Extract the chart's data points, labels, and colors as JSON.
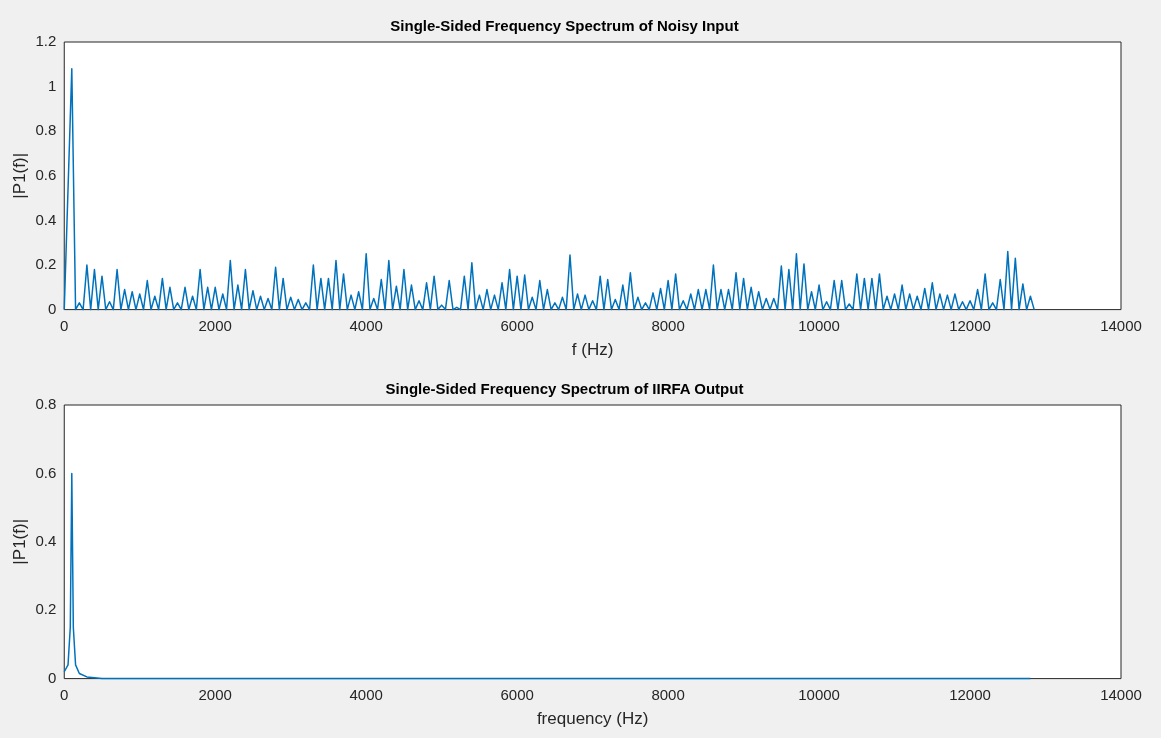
{
  "chart_data": [
    {
      "type": "line",
      "title": "Single-Sided Frequency Spectrum of Noisy Input",
      "xlabel": "f (Hz)",
      "ylabel": "|P1(f)|",
      "marker": "none",
      "x": [
        0,
        100,
        150,
        200,
        250,
        300,
        350,
        400,
        450,
        500,
        550,
        600,
        650,
        700,
        750,
        800,
        850,
        900,
        950,
        1000,
        1050,
        1100,
        1150,
        1200,
        1250,
        1300,
        1350,
        1400,
        1450,
        1500,
        1550,
        1600,
        1650,
        1700,
        1750,
        1800,
        1850,
        1900,
        1950,
        2000,
        2050,
        2100,
        2150,
        2200,
        2250,
        2300,
        2350,
        2400,
        2450,
        2500,
        2550,
        2600,
        2650,
        2700,
        2750,
        2800,
        2850,
        2900,
        2950,
        3000,
        3050,
        3100,
        3150,
        3200,
        3250,
        3300,
        3350,
        3400,
        3450,
        3500,
        3550,
        3600,
        3650,
        3700,
        3750,
        3800,
        3850,
        3900,
        3950,
        4000,
        4050,
        4100,
        4150,
        4200,
        4250,
        4300,
        4350,
        4400,
        4450,
        4500,
        4550,
        4600,
        4650,
        4700,
        4750,
        4800,
        4850,
        4900,
        4950,
        5000,
        5050,
        5100,
        5150,
        5200,
        5250,
        5300,
        5350,
        5400,
        5450,
        5500,
        5550,
        5600,
        5650,
        5700,
        5750,
        5800,
        5850,
        5900,
        5950,
        6000,
        6050,
        6100,
        6150,
        6200,
        6250,
        6300,
        6350,
        6400,
        6450,
        6500,
        6550,
        6600,
        6650,
        6700,
        6750,
        6800,
        6850,
        6900,
        6950,
        7000,
        7050,
        7100,
        7150,
        7200,
        7250,
        7300,
        7350,
        7400,
        7450,
        7500,
        7550,
        7600,
        7650,
        7700,
        7750,
        7800,
        7850,
        7900,
        7950,
        8000,
        8050,
        8100,
        8150,
        8200,
        8250,
        8300,
        8350,
        8400,
        8450,
        8500,
        8550,
        8600,
        8650,
        8700,
        8750,
        8800,
        8850,
        8900,
        8950,
        9000,
        9050,
        9100,
        9150,
        9200,
        9250,
        9300,
        9350,
        9400,
        9450,
        9500,
        9550,
        9600,
        9650,
        9700,
        9750,
        9800,
        9850,
        9900,
        9950,
        10000,
        10050,
        10100,
        10150,
        10200,
        10250,
        10300,
        10350,
        10400,
        10450,
        10500,
        10550,
        10600,
        10650,
        10700,
        10750,
        10800,
        10850,
        10900,
        10950,
        11000,
        11050,
        11100,
        11150,
        11200,
        11250,
        11300,
        11350,
        11400,
        11450,
        11500,
        11550,
        11600,
        11650,
        11700,
        11750,
        11800,
        11850,
        11900,
        11950,
        12000,
        12050,
        12100,
        12150,
        12200,
        12250,
        12300,
        12350,
        12400,
        12450,
        12500,
        12550,
        12600,
        12650,
        12700,
        12750,
        12800,
        12850
      ],
      "series": [
        {
          "color": "#0072bd",
          "values": [
            0,
            1.08,
            0,
            0.03,
            0,
            0.2,
            0,
            0.18,
            0,
            0.15,
            0,
            0.035,
            0,
            0.18,
            0,
            0.09,
            0,
            0.08,
            0,
            0.07,
            0,
            0.13,
            0,
            0.06,
            0,
            0.14,
            0,
            0.1,
            0,
            0.03,
            0,
            0.1,
            0,
            0.06,
            0,
            0.18,
            0,
            0.1,
            0,
            0.1,
            0,
            0.07,
            0,
            0.22,
            0,
            0.11,
            0,
            0.18,
            0,
            0.085,
            0,
            0.06,
            0,
            0.05,
            0,
            0.19,
            0,
            0.14,
            0,
            0.055,
            0,
            0.045,
            0,
            0.03,
            0,
            0.2,
            0,
            0.14,
            0,
            0.14,
            0,
            0.22,
            0,
            0.16,
            0,
            0.065,
            0,
            0.08,
            0,
            0.25,
            0,
            0.05,
            0,
            0.135,
            0,
            0.22,
            0,
            0.105,
            0,
            0.18,
            0,
            0.11,
            0,
            0.04,
            0,
            0.12,
            0,
            0.15,
            0,
            0.02,
            0,
            0.13,
            0,
            0.01,
            0,
            0.15,
            0,
            0.21,
            0,
            0.065,
            0,
            0.09,
            0,
            0.065,
            0,
            0.12,
            0,
            0.18,
            0,
            0.15,
            0,
            0.155,
            0,
            0.055,
            0,
            0.13,
            0,
            0.09,
            0,
            0.03,
            0,
            0.055,
            0,
            0.245,
            0,
            0.07,
            0,
            0.065,
            0,
            0.04,
            0,
            0.15,
            0,
            0.135,
            0,
            0.045,
            0,
            0.11,
            0,
            0.165,
            0,
            0.055,
            0,
            0.03,
            0,
            0.075,
            0,
            0.095,
            0,
            0.13,
            0,
            0.16,
            0,
            0.04,
            0,
            0.07,
            0,
            0.09,
            0,
            0.09,
            0,
            0.2,
            0,
            0.09,
            0,
            0.09,
            0,
            0.165,
            0,
            0.14,
            0,
            0.1,
            0,
            0.08,
            0,
            0.05,
            0,
            0.05,
            0,
            0.195,
            0,
            0.18,
            0,
            0.25,
            0,
            0.205,
            0,
            0.08,
            0,
            0.11,
            0,
            0.035,
            0,
            0.13,
            0,
            0.13,
            0,
            0.025,
            0,
            0.16,
            0,
            0.14,
            0,
            0.14,
            0,
            0.16,
            0,
            0.06,
            0,
            0.07,
            0,
            0.11,
            0,
            0.07,
            0,
            0.06,
            0,
            0.095,
            0,
            0.12,
            0,
            0.07,
            0,
            0.065,
            0,
            0.07,
            0,
            0.035,
            0,
            0.04,
            0,
            0.09,
            0,
            0.16,
            0,
            0.03,
            0,
            0.135,
            0,
            0.26,
            0,
            0.23,
            0,
            0.115,
            0,
            0.06,
            0
          ]
        }
      ],
      "xlim": [
        0,
        14000
      ],
      "ylim": [
        0,
        1.2
      ],
      "xticks": [
        0,
        2000,
        4000,
        6000,
        8000,
        10000,
        12000,
        14000
      ],
      "yticks": [
        0,
        0.2,
        0.4,
        0.6,
        0.8,
        1,
        1.2
      ]
    },
    {
      "type": "line",
      "title": "Single-Sided Frequency Spectrum of IIRFA Output",
      "xlabel": "frequency (Hz)",
      "ylabel": "|P1(f)|",
      "marker": "none",
      "x": [
        0,
        50,
        80,
        100,
        120,
        150,
        200,
        300,
        500,
        12800
      ],
      "series": [
        {
          "color": "#0072bd",
          "values": [
            0.02,
            0.04,
            0.15,
            0.6,
            0.15,
            0.04,
            0.015,
            0.005,
            0,
            0
          ]
        }
      ],
      "xlim": [
        0,
        14000
      ],
      "ylim": [
        0,
        0.8
      ],
      "xticks": [
        0,
        2000,
        4000,
        6000,
        8000,
        10000,
        12000,
        14000
      ],
      "yticks": [
        0,
        0.2,
        0.4,
        0.6,
        0.8
      ]
    }
  ]
}
